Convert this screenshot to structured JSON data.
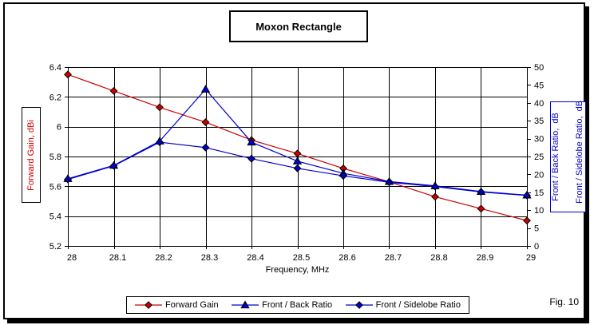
{
  "title": "Moxon Rectangle",
  "x_axis_label": "Frequency, MHz",
  "left_axis_label": "Forward Gain, dBi",
  "right_axis_label_line1": "Front / Back Ratio,  dB",
  "right_axis_label_line2": "Front / Sidelobe Ratio,  dB",
  "fig_label": "Fig. 10",
  "colors": {
    "forward_gain_red": "#cc0000",
    "ratio_blue": "#0000cc",
    "grid": "#000000",
    "background": "#ffffff"
  },
  "chart_data": {
    "type": "line",
    "title": "Moxon Rectangle",
    "xlabel": "Frequency, MHz",
    "ylabel_left": "Forward Gain, dBi",
    "ylabel_right": "Front / Back Ratio, dB; Front / Sidelobe Ratio, dB",
    "grid": true,
    "legend_position": "bottom",
    "x": [
      28,
      28.1,
      28.2,
      28.3,
      28.4,
      28.5,
      28.6,
      28.7,
      28.8,
      28.9,
      29
    ],
    "x_tick_labels": [
      "28",
      "28.1",
      "28.2",
      "28.3",
      "28.4",
      "28.5",
      "28.6",
      "28.7",
      "28.8",
      "28.9",
      "29"
    ],
    "left_axis": {
      "min": 5.2,
      "max": 6.4,
      "ticks": [
        5.2,
        5.4,
        5.6,
        5.8,
        6,
        6.2,
        6.4
      ],
      "tick_labels": [
        "5.2",
        "5.4",
        "5.6",
        "5.8",
        "6",
        "6.2",
        "6.4"
      ]
    },
    "right_axis": {
      "min": 0,
      "max": 50,
      "ticks": [
        0,
        5,
        10,
        15,
        20,
        25,
        30,
        35,
        40,
        45,
        50
      ],
      "tick_labels": [
        "0",
        "5",
        "10",
        "15",
        "20",
        "25",
        "30",
        "35",
        "40",
        "45",
        "50"
      ]
    },
    "series": [
      {
        "name": "Forward Gain",
        "axis": "left",
        "marker": "diamond",
        "color": "#cc0000",
        "values": [
          6.35,
          6.24,
          6.13,
          6.03,
          5.91,
          5.82,
          5.72,
          5.63,
          5.53,
          5.45,
          5.37
        ]
      },
      {
        "name": "Front / Back Ratio",
        "axis": "right",
        "marker": "triangle",
        "color": "#0000cc",
        "values": [
          18.8,
          22.5,
          29.3,
          43.8,
          29.0,
          23.7,
          20.3,
          18.0,
          16.8,
          15.2,
          14.2
        ]
      },
      {
        "name": "Front / Sidelobe Ratio",
        "axis": "right",
        "marker": "diamond",
        "color": "#0000cc",
        "values": [
          18.6,
          22.4,
          29.0,
          27.5,
          24.4,
          21.7,
          19.6,
          17.8,
          16.6,
          15.1,
          14.1
        ]
      }
    ]
  }
}
